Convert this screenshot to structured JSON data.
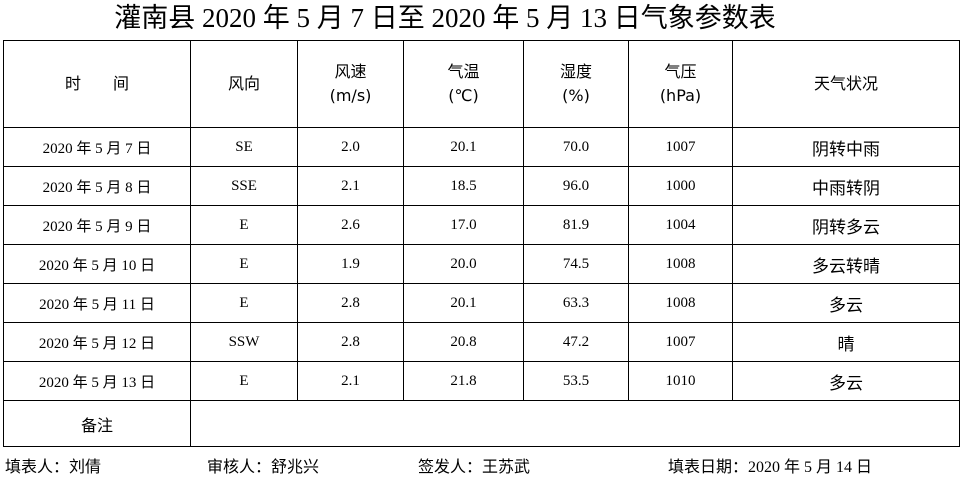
{
  "title": "灌南县 2020 年 5 月 7 日至 2020 年 5 月 13 日气象参数表",
  "table": {
    "header": [
      [
        "时　　间"
      ],
      [
        "风向"
      ],
      [
        "风速",
        "(m/s)"
      ],
      [
        "气温",
        "(℃)"
      ],
      [
        "湿度",
        "(%)"
      ],
      [
        "气压",
        "(hPa)"
      ],
      [
        "天气状况"
      ]
    ],
    "rows": [
      [
        "2020 年 5 月 7 日",
        "SE",
        "2.0",
        "20.1",
        "70.0",
        "1007",
        "阴转中雨"
      ],
      [
        "2020 年 5 月 8 日",
        "SSE",
        "2.1",
        "18.5",
        "96.0",
        "1000",
        "中雨转阴"
      ],
      [
        "2020 年 5 月 9 日",
        "E",
        "2.6",
        "17.0",
        "81.9",
        "1004",
        "阴转多云"
      ],
      [
        "2020 年 5 月 10 日",
        "E",
        "1.9",
        "20.0",
        "74.5",
        "1008",
        "多云转晴"
      ],
      [
        "2020 年 5 月 11 日",
        "E",
        "2.8",
        "20.1",
        "63.3",
        "1008",
        "多云"
      ],
      [
        "2020 年 5 月 12 日",
        "SSW",
        "2.8",
        "20.8",
        "47.2",
        "1007",
        "晴"
      ],
      [
        "2020 年 5 月 13 日",
        "E",
        "2.1",
        "21.8",
        "53.5",
        "1010",
        "多云"
      ]
    ],
    "remarks_label": "备注"
  },
  "footer": [
    "填表人：刘倩",
    "审核人：舒兆兴",
    "签发人：王苏武",
    "填表日期：2020 年 5 月 14 日"
  ]
}
